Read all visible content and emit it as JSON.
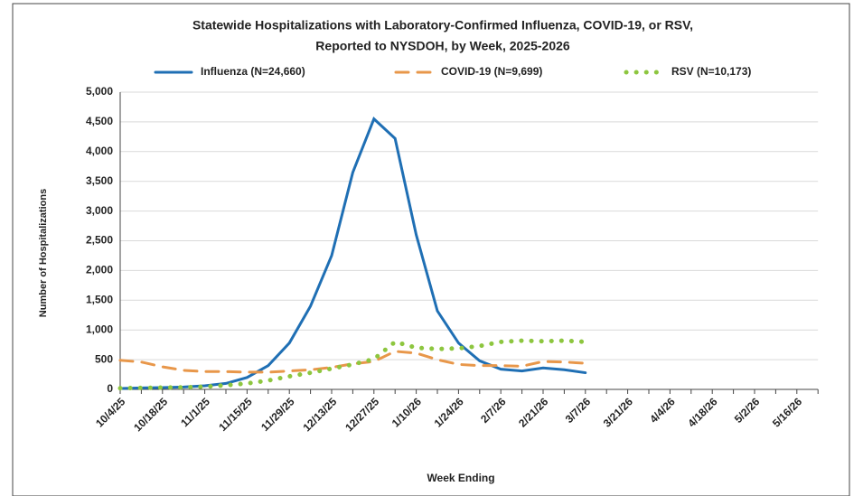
{
  "chart_data": {
    "type": "line",
    "title": "Statewide Hospitalizations with Laboratory-Confirmed  Influenza, COVID-19, or RSV,",
    "subtitle": "Reported to NYSDOH, by Week, 2025-2026",
    "x_label": "Week Ending",
    "y_label": "Number of Hospitalizations",
    "categories": [
      "10/4/25",
      null,
      "10/18/25",
      null,
      "11/1/25",
      null,
      "11/15/25",
      null,
      "11/29/25",
      null,
      "12/13/25",
      null,
      "12/27/25",
      null,
      "1/10/26",
      null,
      "1/24/26",
      null,
      "2/7/26",
      null,
      "2/21/26",
      null,
      "3/7/26",
      null,
      "3/21/26",
      null,
      "4/4/26",
      null,
      "4/18/26",
      null,
      "5/2/26",
      null,
      "5/16/26",
      null
    ],
    "series": [
      {
        "name": "Influenza (N=24,660)",
        "color": "#1f6fb4",
        "style": "solid",
        "values": [
          15,
          25,
          30,
          40,
          60,
          100,
          200,
          400,
          780,
          1400,
          2250,
          3650,
          4550,
          4220,
          2600,
          1320,
          780,
          480,
          340,
          310,
          360,
          330,
          280,
          null,
          null,
          null,
          null,
          null,
          null,
          null,
          null,
          null,
          null,
          null
        ]
      },
      {
        "name": "COVID-19 (N=9,699)",
        "color": "#e8974a",
        "style": "dashed",
        "values": [
          490,
          460,
          380,
          320,
          300,
          300,
          290,
          290,
          310,
          330,
          370,
          430,
          470,
          640,
          610,
          500,
          420,
          400,
          400,
          390,
          470,
          460,
          440,
          null,
          null,
          null,
          null,
          null,
          null,
          null,
          null,
          null,
          null,
          null
        ]
      },
      {
        "name": "RSV (N=10,173)",
        "color": "#8dc63f",
        "style": "dotted",
        "values": [
          20,
          25,
          30,
          35,
          45,
          70,
          100,
          150,
          220,
          280,
          350,
          420,
          510,
          800,
          700,
          680,
          690,
          730,
          800,
          820,
          810,
          820,
          800,
          null,
          null,
          null,
          null,
          null,
          null,
          null,
          null,
          null,
          null,
          null
        ]
      }
    ],
    "ylim": [
      0,
      5000
    ],
    "yticks": [
      0,
      500,
      {
        "value": 1000,
        "label": "1,000"
      },
      {
        "value": 1500,
        "label": "1,500"
      },
      {
        "value": 2000,
        "label": "2,000"
      },
      {
        "value": 2500,
        "label": "2,500"
      },
      {
        "value": 3000,
        "label": "3,000"
      },
      {
        "value": 3500,
        "label": "3,500"
      },
      {
        "value": 4000,
        "label": "4,000"
      },
      {
        "value": 4500,
        "label": "4,500"
      },
      {
        "value": 5000,
        "label": "5,000"
      }
    ],
    "grid": true,
    "legend": "top"
  }
}
